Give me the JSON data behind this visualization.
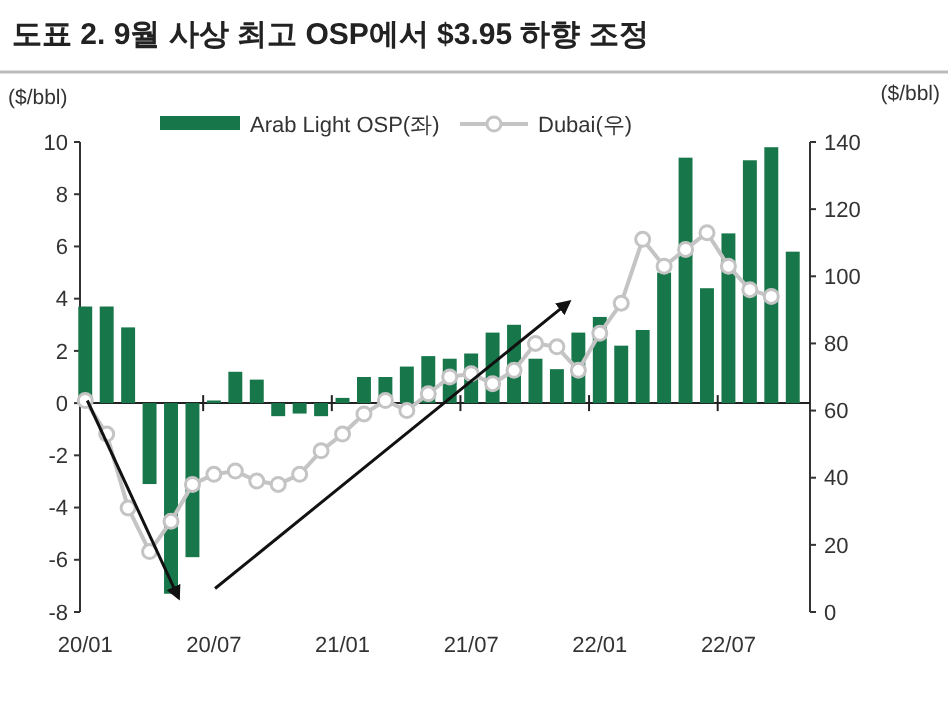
{
  "chart_data": {
    "type": "bar",
    "title": "도표 2. 9월 사상 최고 OSP에서 $3.95 하향 조정",
    "ylabel": "($/bbl)",
    "y2label": "($/bbl)",
    "categories": [
      "20/01",
      null,
      null,
      null,
      null,
      null,
      "20/07",
      null,
      null,
      null,
      null,
      null,
      "21/01",
      null,
      null,
      null,
      null,
      null,
      "21/07",
      null,
      null,
      null,
      null,
      null,
      "22/01",
      null,
      null,
      null,
      null,
      null,
      "22/07",
      null,
      null,
      null
    ],
    "series": [
      {
        "name": "Arab Light OSP(좌)",
        "color": "#17774a",
        "values": [
          3.7,
          3.7,
          2.9,
          -3.1,
          -7.3,
          -5.9,
          0.1,
          1.2,
          0.9,
          -0.5,
          -0.4,
          -0.5,
          0.2,
          1.0,
          1.0,
          1.4,
          1.8,
          1.7,
          1.9,
          2.7,
          3.0,
          1.7,
          1.3,
          2.7,
          3.3,
          2.2,
          2.8,
          5.0,
          9.4,
          4.4,
          6.5,
          9.3,
          9.8,
          5.8
        ]
      },
      {
        "name": "Dubai(우)",
        "type": "line",
        "axis": "y2",
        "color": "#c4c4c4",
        "marker": "circle",
        "line_style": "solid",
        "values": [
          63,
          53,
          31,
          18,
          27,
          38,
          41,
          42,
          39,
          38,
          41,
          48,
          53,
          59,
          63,
          60,
          65,
          70,
          71,
          68,
          72,
          80,
          79,
          72,
          83,
          92,
          111,
          103,
          108,
          113,
          103,
          96,
          94,
          null
        ]
      }
    ],
    "ylim": [
      -8,
      10
    ],
    "yticks": [
      -8,
      -6,
      -4,
      -2,
      0,
      2,
      4,
      6,
      8,
      10
    ],
    "y2lim": [
      0,
      140
    ],
    "y2ticks": [
      0,
      20,
      40,
      60,
      80,
      100,
      120,
      140
    ],
    "legend": "top"
  }
}
